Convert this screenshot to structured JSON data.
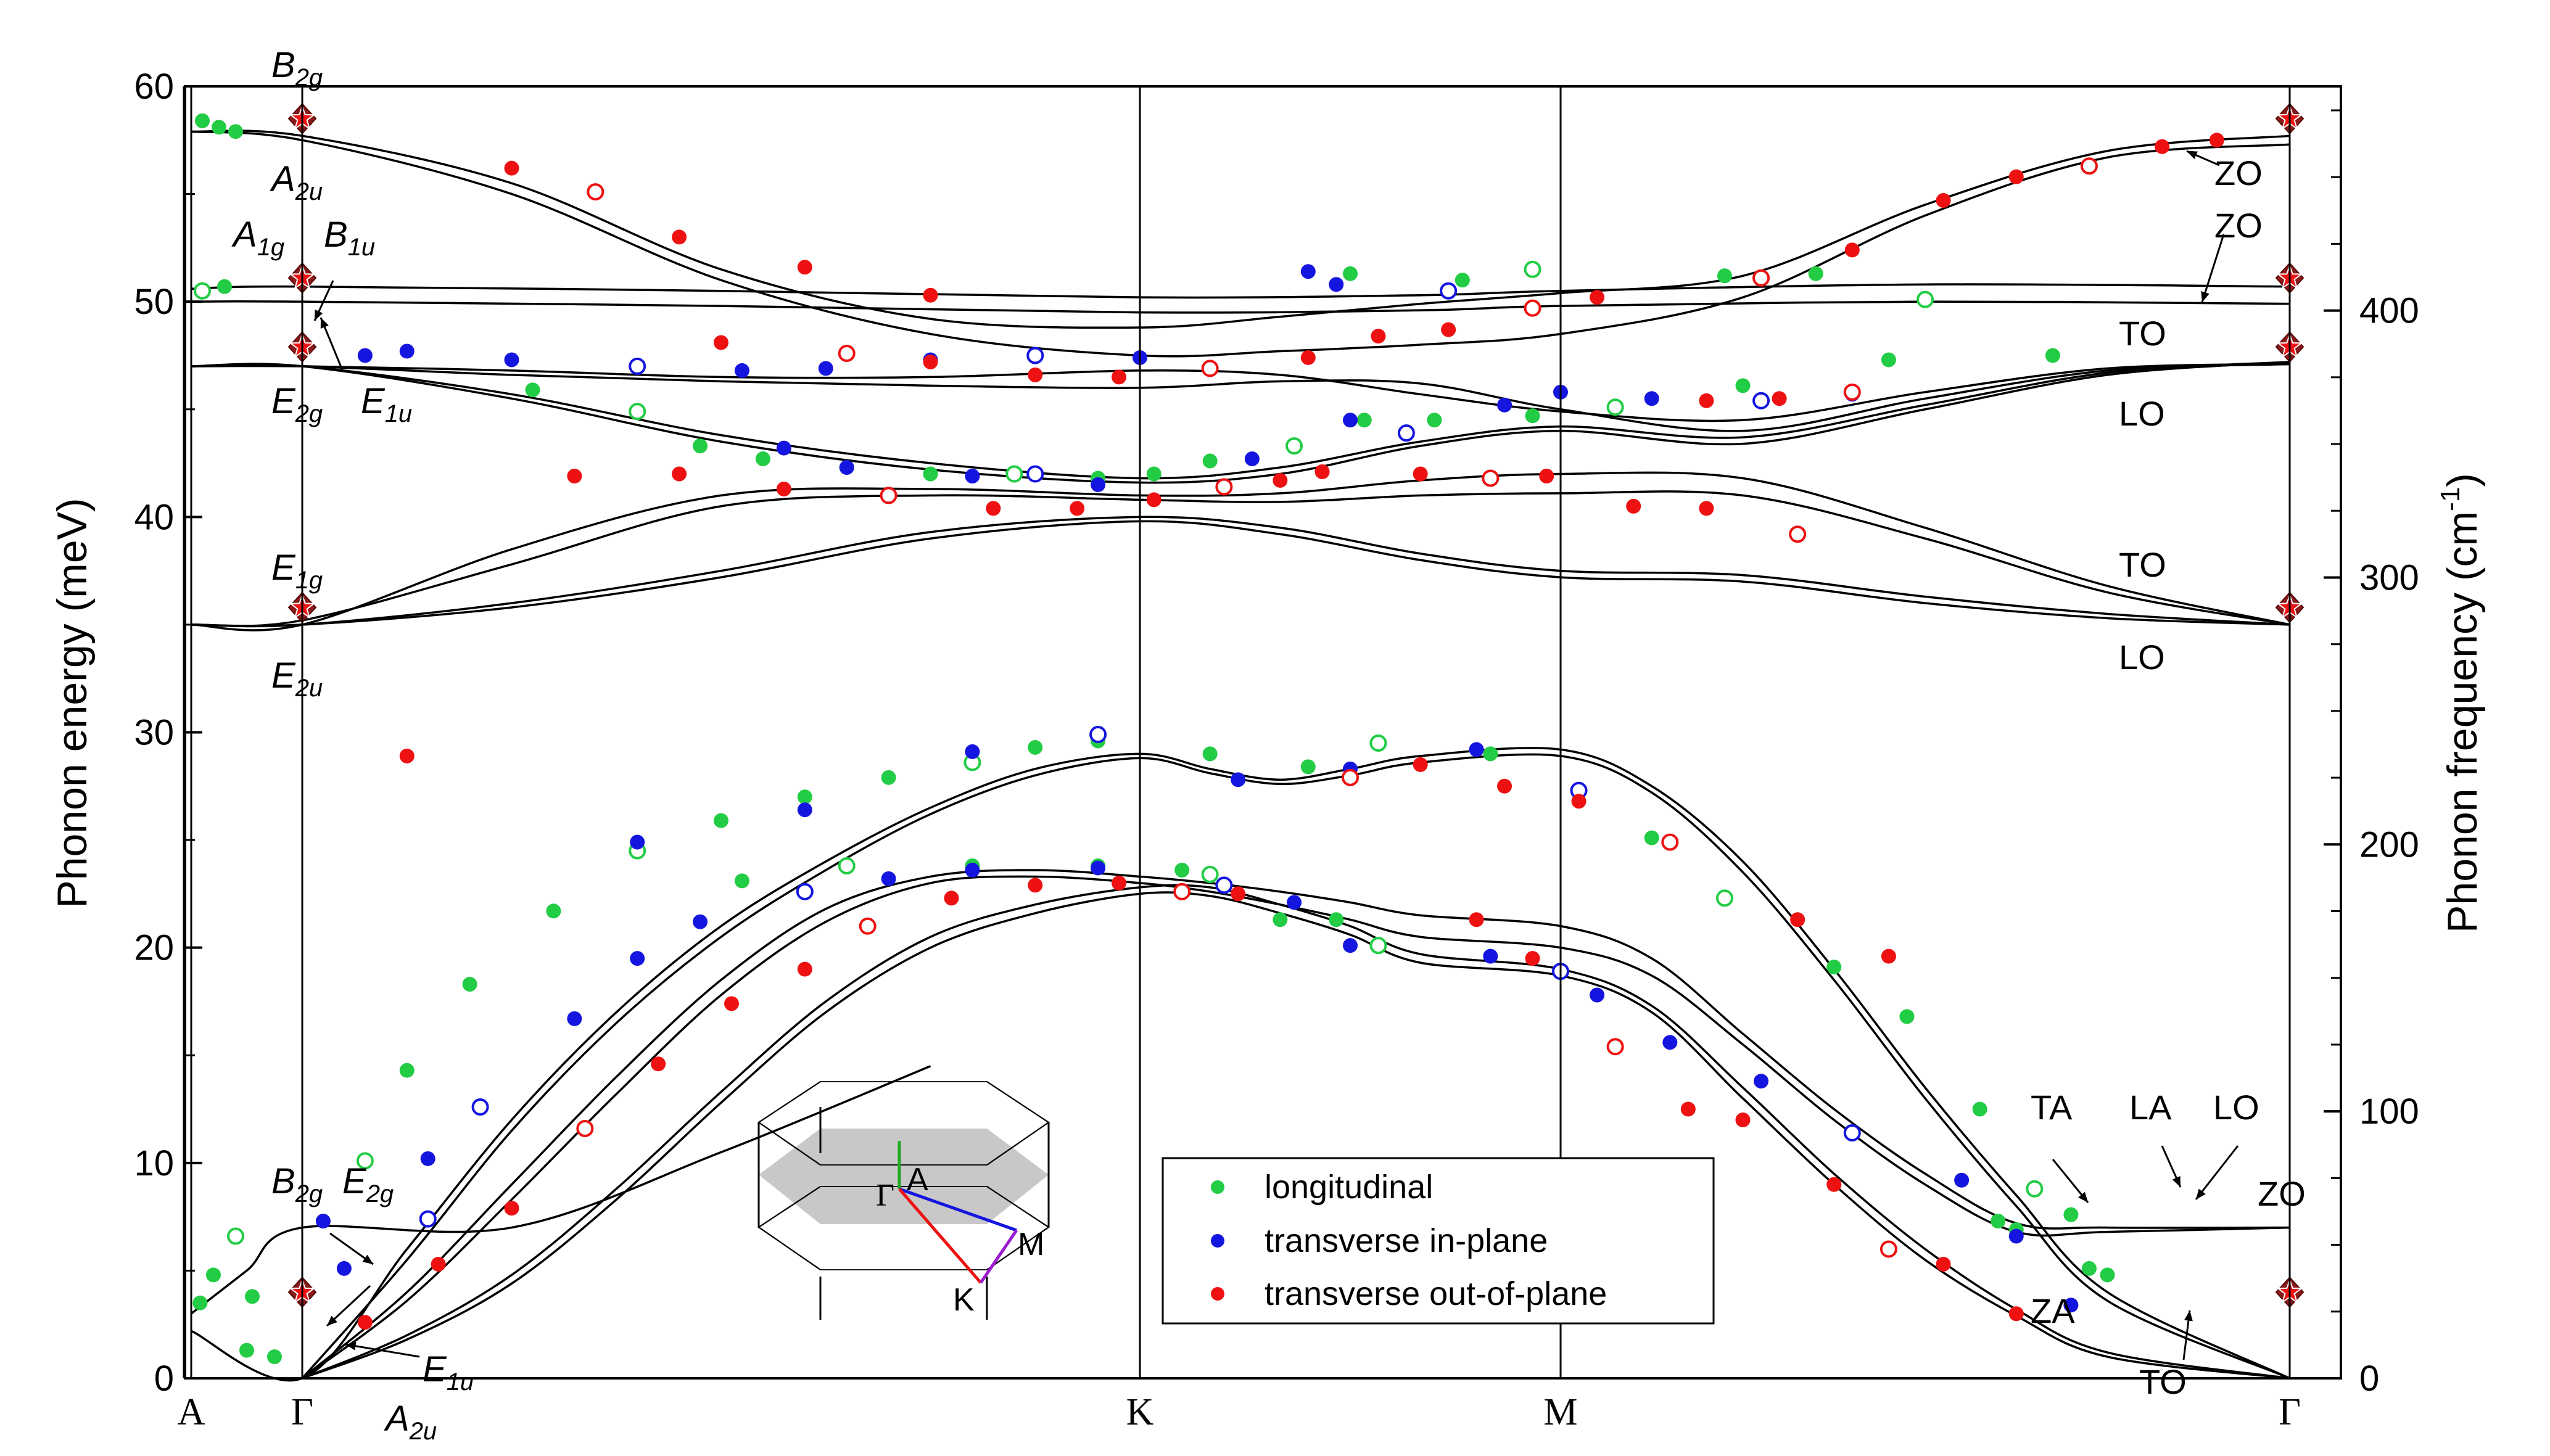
{
  "chart_data": {
    "type": "scatter",
    "title": "",
    "ylabel_left": "Phonon energy (meV)",
    "ylabel_right": "Phonon frequency (cm",
    "ylabel_right_sup": "-1",
    "ylabel_right_close": ")",
    "ylim_left": [
      0,
      60
    ],
    "ylim_right": [
      0,
      484
    ],
    "left_ticks": [
      "0",
      "10",
      "20",
      "30",
      "40",
      "50",
      "60"
    ],
    "right_ticks": [
      "0",
      "100",
      "200",
      "300",
      "400"
    ],
    "x_points": [
      "A",
      "Γ",
      "K",
      "M",
      "Γ"
    ],
    "legend": {
      "position": "bottom-center",
      "entries": [
        {
          "label": "longitudinal",
          "color": "#22cc44"
        },
        {
          "label": "transverse in-plane",
          "color": "#1515e0"
        },
        {
          "label": "transverse out-of-plane",
          "color": "#ee1111"
        }
      ]
    },
    "gamma_modes": [
      {
        "main": "B",
        "sub": "2g",
        "energy": 58.5
      },
      {
        "main": "A",
        "sub": "2u",
        "energy": 57.7
      },
      {
        "main": "A",
        "sub": "1g",
        "energy": 51.1
      },
      {
        "main": "B",
        "sub": "1u",
        "energy": 51.1
      },
      {
        "main": "E",
        "sub": "2g",
        "energy": 47.9
      },
      {
        "main": "E",
        "sub": "1u",
        "energy": 47.9
      },
      {
        "main": "E",
        "sub": "1g",
        "energy": 35.8
      },
      {
        "main": "E",
        "sub": "2u",
        "energy": 35.8
      },
      {
        "main": "B",
        "sub": "2g",
        "energy": 4.0
      },
      {
        "main": "E",
        "sub": "2g",
        "energy": 4.0
      },
      {
        "main": "E",
        "sub": "1u",
        "energy": 0.9
      },
      {
        "main": "A",
        "sub": "2u",
        "energy": 0.0
      }
    ],
    "branch_labels": [
      "ZO",
      "ZO",
      "TO",
      "LO",
      "TO",
      "LO",
      "TA",
      "LA",
      "LO",
      "ZO",
      "ZA",
      "TO"
    ],
    "inset_labels": [
      "Γ",
      "A",
      "M",
      "K"
    ],
    "series": [
      {
        "name": "longitudinal",
        "color": "#22cc44",
        "points": [
          [
            0.1,
            58.4
          ],
          [
            0.25,
            58.1
          ],
          [
            0.4,
            57.9
          ],
          [
            0.1,
            50.5
          ],
          [
            0.3,
            50.7
          ],
          [
            0.08,
            3.5
          ],
          [
            0.2,
            4.8
          ],
          [
            0.4,
            6.6
          ],
          [
            0.55,
            3.8
          ],
          [
            0.5,
            1.3
          ],
          [
            0.75,
            1.0
          ],
          [
            1.3,
            10.1
          ],
          [
            1.5,
            14.3
          ],
          [
            1.8,
            18.3
          ],
          [
            2.2,
            21.7
          ],
          [
            2.6,
            24.5
          ],
          [
            3.0,
            25.9
          ],
          [
            3.4,
            27.0
          ],
          [
            3.8,
            27.9
          ],
          [
            4.2,
            28.6
          ],
          [
            4.5,
            29.3
          ],
          [
            4.8,
            29.6
          ],
          [
            3.1,
            23.1
          ],
          [
            3.6,
            23.8
          ],
          [
            4.2,
            23.8
          ],
          [
            4.8,
            23.8
          ],
          [
            5.3,
            23.6
          ],
          [
            5.5,
            23.4
          ],
          [
            3.2,
            42.7
          ],
          [
            3.6,
            42.3
          ],
          [
            4.0,
            42.0
          ],
          [
            4.4,
            42.0
          ],
          [
            4.8,
            41.8
          ],
          [
            5.1,
            42.0
          ],
          [
            5.5,
            42.6
          ],
          [
            6.1,
            43.3
          ],
          [
            6.6,
            44.5
          ],
          [
            7.1,
            44.5
          ],
          [
            7.8,
            44.7
          ],
          [
            8.3,
            45.1
          ],
          [
            9.0,
            46.1
          ],
          [
            9.8,
            47.3
          ],
          [
            2.1,
            45.9
          ],
          [
            2.6,
            44.9
          ],
          [
            2.9,
            43.3
          ],
          [
            5.5,
            29.0
          ],
          [
            6.2,
            28.4
          ],
          [
            6.7,
            29.5
          ],
          [
            7.5,
            29.0
          ],
          [
            8.1,
            27.2
          ],
          [
            8.5,
            25.1
          ],
          [
            8.9,
            22.3
          ],
          [
            9.5,
            19.1
          ],
          [
            9.9,
            16.8
          ],
          [
            10.3,
            12.5
          ],
          [
            10.6,
            8.8
          ],
          [
            10.8,
            7.6
          ],
          [
            6.0,
            21.3
          ],
          [
            6.4,
            21.3
          ],
          [
            6.7,
            20.1
          ],
          [
            10.5,
            6.9
          ],
          [
            8.9,
            51.2
          ],
          [
            9.4,
            51.3
          ],
          [
            10.0,
            50.1
          ],
          [
            10.7,
            47.5
          ],
          [
            6.5,
            51.3
          ],
          [
            7.3,
            51.0
          ],
          [
            7.8,
            51.5
          ],
          [
            10.4,
            7.3
          ],
          [
            10.9,
            5.1
          ],
          [
            11.0,
            4.8
          ]
        ]
      },
      {
        "name": "transverse in-plane",
        "color": "#1515e0",
        "points": [
          [
            1.1,
            7.3
          ],
          [
            1.2,
            5.1
          ],
          [
            1.6,
            10.2
          ],
          [
            1.85,
            12.6
          ],
          [
            2.3,
            16.7
          ],
          [
            2.6,
            19.5
          ],
          [
            2.9,
            21.2
          ],
          [
            3.4,
            22.6
          ],
          [
            3.8,
            23.2
          ],
          [
            4.2,
            23.6
          ],
          [
            4.8,
            23.7
          ],
          [
            5.6,
            22.9
          ],
          [
            6.1,
            22.1
          ],
          [
            6.5,
            20.1
          ],
          [
            7.5,
            19.6
          ],
          [
            8.0,
            18.9
          ],
          [
            8.2,
            17.8
          ],
          [
            8.6,
            15.6
          ],
          [
            9.1,
            13.8
          ],
          [
            9.6,
            11.4
          ],
          [
            10.2,
            9.2
          ],
          [
            10.5,
            6.6
          ],
          [
            10.8,
            3.4
          ],
          [
            1.6,
            7.4
          ],
          [
            2.6,
            24.9
          ],
          [
            3.4,
            26.4
          ],
          [
            4.2,
            29.1
          ],
          [
            4.8,
            29.9
          ],
          [
            5.7,
            27.8
          ],
          [
            6.5,
            28.3
          ],
          [
            7.4,
            29.2
          ],
          [
            8.1,
            27.3
          ],
          [
            1.3,
            47.5
          ],
          [
            1.5,
            47.7
          ],
          [
            2.0,
            47.3
          ],
          [
            2.6,
            47.0
          ],
          [
            3.1,
            46.8
          ],
          [
            3.5,
            46.9
          ],
          [
            4.0,
            47.3
          ],
          [
            4.5,
            47.5
          ],
          [
            5.0,
            47.4
          ],
          [
            6.2,
            51.4
          ],
          [
            6.4,
            50.8
          ],
          [
            7.2,
            50.5
          ],
          [
            3.3,
            43.2
          ],
          [
            3.6,
            42.3
          ],
          [
            4.2,
            41.9
          ],
          [
            4.5,
            42.0
          ],
          [
            4.8,
            41.5
          ],
          [
            5.8,
            42.7
          ],
          [
            6.5,
            44.5
          ],
          [
            6.9,
            43.9
          ],
          [
            7.6,
            45.2
          ],
          [
            8.0,
            45.8
          ],
          [
            8.5,
            45.5
          ],
          [
            9.1,
            45.4
          ],
          [
            9.6,
            45.7
          ]
        ]
      },
      {
        "name": "transverse out-of-plane",
        "color": "#ee1111",
        "points": [
          [
            1.3,
            2.6
          ],
          [
            1.65,
            5.3
          ],
          [
            2.0,
            7.9
          ],
          [
            2.35,
            11.6
          ],
          [
            2.7,
            14.6
          ],
          [
            3.05,
            17.4
          ],
          [
            3.4,
            19.0
          ],
          [
            3.7,
            21.0
          ],
          [
            4.1,
            22.3
          ],
          [
            4.5,
            22.9
          ],
          [
            4.9,
            23.0
          ],
          [
            5.3,
            22.6
          ],
          [
            5.7,
            22.5
          ],
          [
            7.4,
            21.3
          ],
          [
            7.8,
            19.5
          ],
          [
            8.3,
            15.4
          ],
          [
            8.7,
            12.5
          ],
          [
            9.0,
            12.0
          ],
          [
            9.5,
            9.0
          ],
          [
            9.8,
            6.0
          ],
          [
            10.1,
            5.3
          ],
          [
            10.5,
            3.0
          ],
          [
            1.5,
            28.9
          ],
          [
            6.5,
            27.9
          ],
          [
            7.0,
            28.5
          ],
          [
            7.6,
            27.5
          ],
          [
            8.1,
            26.8
          ],
          [
            8.6,
            24.9
          ],
          [
            9.3,
            21.3
          ],
          [
            9.8,
            19.6
          ],
          [
            2.0,
            56.2
          ],
          [
            2.4,
            55.1
          ],
          [
            2.8,
            53.0
          ],
          [
            3.4,
            51.6
          ],
          [
            4.0,
            50.3
          ],
          [
            9.1,
            51.1
          ],
          [
            9.6,
            52.4
          ],
          [
            10.1,
            54.7
          ],
          [
            10.5,
            55.8
          ],
          [
            10.9,
            56.3
          ],
          [
            11.3,
            57.2
          ],
          [
            11.6,
            57.5
          ],
          [
            3.0,
            48.1
          ],
          [
            3.6,
            47.6
          ],
          [
            4.0,
            47.2
          ],
          [
            4.5,
            46.6
          ],
          [
            4.9,
            46.5
          ],
          [
            5.5,
            46.9
          ],
          [
            6.2,
            47.4
          ],
          [
            6.7,
            48.4
          ],
          [
            7.2,
            48.7
          ],
          [
            7.8,
            49.7
          ],
          [
            8.2,
            50.2
          ],
          [
            8.8,
            45.4
          ],
          [
            9.2,
            45.5
          ],
          [
            9.6,
            45.8
          ],
          [
            2.3,
            41.9
          ],
          [
            2.8,
            42.0
          ],
          [
            3.3,
            41.3
          ],
          [
            3.8,
            41.0
          ],
          [
            4.3,
            40.4
          ],
          [
            4.7,
            40.4
          ],
          [
            5.1,
            40.8
          ],
          [
            5.6,
            41.4
          ],
          [
            6.0,
            41.7
          ],
          [
            6.3,
            42.1
          ],
          [
            7.0,
            42.0
          ],
          [
            7.5,
            41.8
          ],
          [
            7.9,
            41.9
          ],
          [
            8.4,
            40.5
          ],
          [
            8.8,
            40.4
          ],
          [
            9.3,
            39.2
          ]
        ]
      }
    ]
  }
}
